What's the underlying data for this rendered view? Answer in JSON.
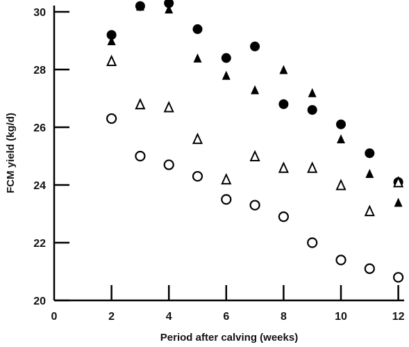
{
  "chart_data": {
    "type": "scatter",
    "xlabel": "Period after calving (weeks)",
    "ylabel": "FCM yield (kg/d)",
    "xlim": [
      0,
      12.5
    ],
    "ylim": [
      20,
      30.4
    ],
    "x_ticks": [
      "0",
      "2",
      "4",
      "6",
      "8",
      "10",
      "12"
    ],
    "y_ticks": [
      "20",
      "22",
      "24",
      "26",
      "28",
      "30"
    ],
    "grid": false,
    "series": [
      {
        "marker": "filled-circle",
        "color": "#000000",
        "points": [
          [
            2,
            29.2
          ],
          [
            3,
            30.2
          ],
          [
            4,
            30.3
          ],
          [
            5,
            29.4
          ],
          [
            6,
            28.4
          ],
          [
            7,
            28.8
          ],
          [
            8,
            26.8
          ],
          [
            9,
            26.6
          ],
          [
            10,
            26.1
          ],
          [
            11,
            25.1
          ],
          [
            12,
            24.1
          ]
        ]
      },
      {
        "marker": "filled-triangle",
        "color": "#000000",
        "points": [
          [
            2,
            29.0
          ],
          [
            3,
            30.2
          ],
          [
            4,
            30.1
          ],
          [
            5,
            28.4
          ],
          [
            6,
            27.8
          ],
          [
            7,
            27.3
          ],
          [
            8,
            28.0
          ],
          [
            9,
            27.2
          ],
          [
            10,
            25.6
          ],
          [
            11,
            24.4
          ],
          [
            12,
            23.4
          ]
        ]
      },
      {
        "marker": "open-triangle",
        "color": "#000000",
        "points": [
          [
            2,
            28.3
          ],
          [
            3,
            26.8
          ],
          [
            4,
            26.7
          ],
          [
            5,
            25.6
          ],
          [
            6,
            24.2
          ],
          [
            7,
            25.0
          ],
          [
            8,
            24.6
          ],
          [
            9,
            24.6
          ],
          [
            10,
            24.0
          ],
          [
            11,
            23.1
          ],
          [
            12,
            24.1
          ]
        ]
      },
      {
        "marker": "open-circle",
        "color": "#000000",
        "points": [
          [
            2,
            26.3
          ],
          [
            3,
            25.0
          ],
          [
            4,
            24.7
          ],
          [
            5,
            24.3
          ],
          [
            6,
            23.5
          ],
          [
            7,
            23.3
          ],
          [
            8,
            22.9
          ],
          [
            9,
            22.0
          ],
          [
            10,
            21.4
          ],
          [
            11,
            21.1
          ],
          [
            12,
            20.8
          ]
        ]
      }
    ]
  }
}
